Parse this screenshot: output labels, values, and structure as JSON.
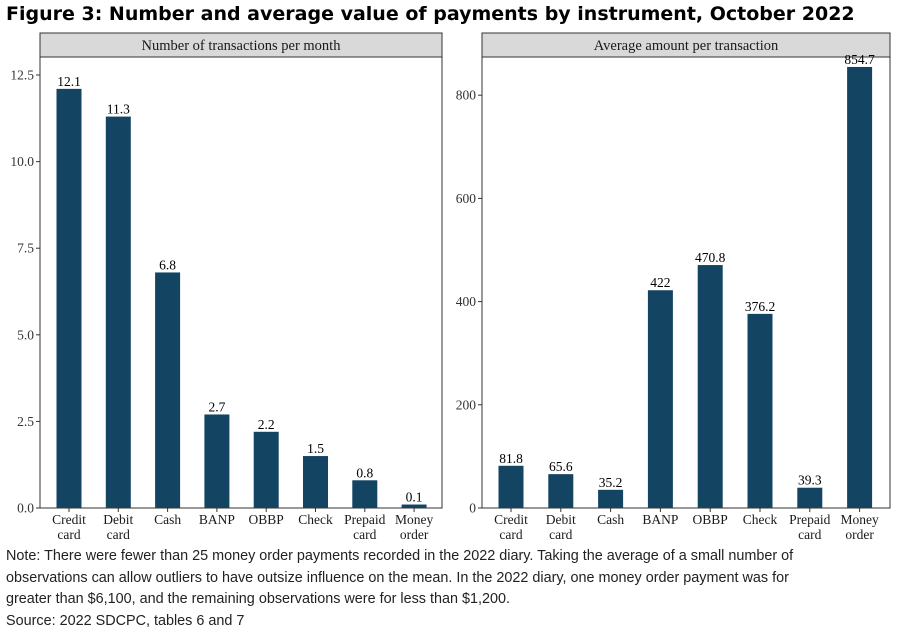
{
  "figure": {
    "title": "Figure 3: Number and average value of payments by instrument, October 2022"
  },
  "chart_data": [
    {
      "type": "bar",
      "title": "Number of transactions per month",
      "categories": [
        [
          "Credit",
          "card"
        ],
        [
          "Debit",
          "card"
        ],
        [
          "Cash"
        ],
        [
          "BANP"
        ],
        [
          "OBBP"
        ],
        [
          "Check"
        ],
        [
          "Prepaid",
          "card"
        ],
        [
          "Money",
          "order"
        ]
      ],
      "values": [
        12.1,
        11.3,
        6.8,
        2.7,
        2.2,
        1.5,
        0.8,
        0.1
      ],
      "value_labels": [
        "12.1",
        "11.3",
        "6.8",
        "2.7",
        "2.2",
        "1.5",
        "0.8",
        "0.1"
      ],
      "ylim": [
        0,
        13.02
      ],
      "yticks": [
        0,
        2.5,
        5,
        7.5,
        10,
        12.5
      ],
      "ytick_labels": [
        "0.0",
        "2.5",
        "5.0",
        "7.5",
        "10.0",
        "12.5"
      ],
      "bar_color": "#134563",
      "grid": false
    },
    {
      "type": "bar",
      "title": "Average amount per transaction",
      "categories": [
        [
          "Credit",
          "card"
        ],
        [
          "Debit",
          "card"
        ],
        [
          "Cash"
        ],
        [
          "BANP"
        ],
        [
          "OBBP"
        ],
        [
          "Check"
        ],
        [
          "Prepaid",
          "card"
        ],
        [
          "Money",
          "order"
        ]
      ],
      "values": [
        81.8,
        65.6,
        35.2,
        422,
        470.8,
        376.2,
        39.3,
        854.7
      ],
      "value_labels": [
        "81.8",
        "65.6",
        "35.2",
        "422",
        "470.8",
        "376.2",
        "39.3",
        "854.7"
      ],
      "ylim": [
        0,
        874
      ],
      "yticks": [
        0,
        200,
        400,
        600,
        800
      ],
      "ytick_labels": [
        "0",
        "200",
        "400",
        "600",
        "800"
      ],
      "bar_color": "#134563",
      "grid": false
    }
  ],
  "notes": {
    "lines": [
      "Note: There were fewer than 25 money order payments recorded in the 2022 diary. Taking the average of a small number of",
      "observations can allow outliers to have outsize influence on the mean. In the 2022 diary, one money order payment was for",
      "greater than $6,100, and the remaining observations were for less than $1,200."
    ],
    "source": "Source: 2022 SDCPC, tables 6 and 7"
  }
}
